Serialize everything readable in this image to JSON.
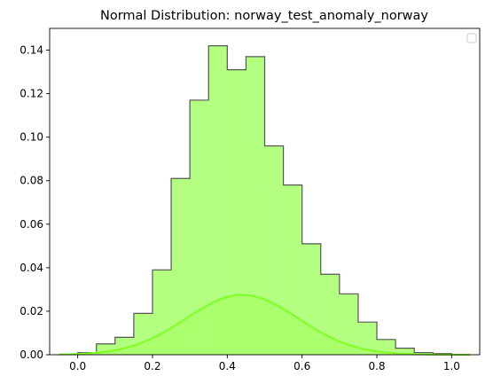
{
  "chart_data": {
    "type": "histogram",
    "title": "Normal Distribution: norway_test_anomaly_norway",
    "xlabel": "",
    "ylabel": "",
    "xlim": [
      -0.075,
      1.075
    ],
    "ylim": [
      0,
      0.15
    ],
    "x_ticks": [
      "0.0",
      "0.2",
      "0.4",
      "0.6",
      "0.8",
      "1.0"
    ],
    "y_ticks": [
      "0.00",
      "0.02",
      "0.04",
      "0.06",
      "0.08",
      "0.10",
      "0.12",
      "0.14"
    ],
    "bin_edges": [
      0.0,
      0.05,
      0.1,
      0.15,
      0.2,
      0.25,
      0.3,
      0.35,
      0.4,
      0.45,
      0.5,
      0.55,
      0.6,
      0.65,
      0.7,
      0.75,
      0.8,
      0.85,
      0.9,
      0.95,
      1.0
    ],
    "densities": [
      0.001,
      0.005,
      0.008,
      0.019,
      0.039,
      0.081,
      0.117,
      0.142,
      0.131,
      0.137,
      0.096,
      0.078,
      0.051,
      0.037,
      0.028,
      0.015,
      0.007,
      0.003,
      0.001,
      0.0005
    ],
    "curve": {
      "type": "normal-pdf-scaled",
      "mean": 0.44,
      "peak": 0.0275,
      "sigma": 0.15,
      "x_range": [
        -0.05,
        1.05
      ]
    },
    "colors": {
      "hist_fill": "#b3ff80",
      "hist_edge": "#555555",
      "curve": "#7fff22",
      "curve_fill": "#9fff55"
    },
    "legend": {
      "placement": "top-right",
      "entries": []
    },
    "grid": false
  }
}
